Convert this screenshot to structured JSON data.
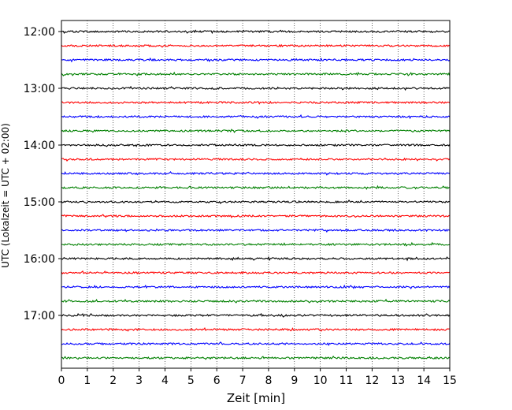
{
  "chart_data": {
    "type": "line",
    "title": "",
    "xlabel": "Zeit  [min]",
    "ylabel": "UTC (Lokalzeit = UTC + 02:00)",
    "xlim": [
      0,
      15
    ],
    "x_ticks": [
      "0",
      "1",
      "2",
      "3",
      "4",
      "5",
      "6",
      "7",
      "8",
      "9",
      "10",
      "11",
      "12",
      "13",
      "14",
      "15"
    ],
    "y_ticks": [
      "12:00",
      "13:00",
      "14:00",
      "15:00",
      "16:00",
      "17:00"
    ],
    "vertical_grid": "dotted",
    "series_colors": [
      "#000000",
      "#ff0000",
      "#0000ff",
      "#008000"
    ],
    "trace_rows": [
      {
        "utc_start": "12:00",
        "color": "#000000"
      },
      {
        "utc_start": "12:15",
        "color": "#ff0000"
      },
      {
        "utc_start": "12:30",
        "color": "#0000ff"
      },
      {
        "utc_start": "12:45",
        "color": "#008000"
      },
      {
        "utc_start": "13:00",
        "color": "#000000"
      },
      {
        "utc_start": "13:15",
        "color": "#ff0000"
      },
      {
        "utc_start": "13:30",
        "color": "#0000ff"
      },
      {
        "utc_start": "13:45",
        "color": "#008000"
      },
      {
        "utc_start": "14:00",
        "color": "#000000"
      },
      {
        "utc_start": "14:15",
        "color": "#ff0000"
      },
      {
        "utc_start": "14:30",
        "color": "#0000ff"
      },
      {
        "utc_start": "14:45",
        "color": "#008000"
      },
      {
        "utc_start": "15:00",
        "color": "#000000"
      },
      {
        "utc_start": "15:15",
        "color": "#ff0000"
      },
      {
        "utc_start": "15:30",
        "color": "#0000ff"
      },
      {
        "utc_start": "15:45",
        "color": "#008000"
      },
      {
        "utc_start": "16:00",
        "color": "#000000"
      },
      {
        "utc_start": "16:15",
        "color": "#ff0000"
      },
      {
        "utc_start": "16:30",
        "color": "#0000ff"
      },
      {
        "utc_start": "16:45",
        "color": "#008000"
      },
      {
        "utc_start": "17:00",
        "color": "#000000"
      },
      {
        "utc_start": "17:15",
        "color": "#ff0000"
      },
      {
        "utc_start": "17:30",
        "color": "#0000ff"
      },
      {
        "utc_start": "17:45",
        "color": "#008000"
      }
    ]
  }
}
